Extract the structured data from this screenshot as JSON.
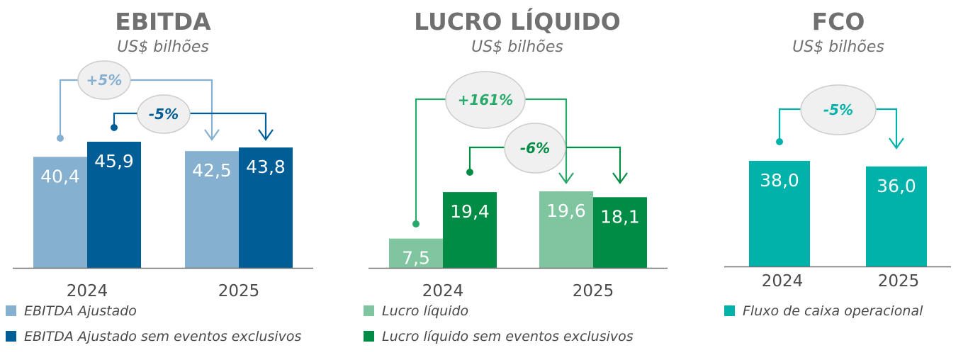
{
  "chart_data": [
    {
      "type": "bar",
      "title": "EBITDA",
      "subtitle": "US$ bilhões",
      "categories": [
        "2024",
        "2025"
      ],
      "series": [
        {
          "name": "EBITDA Ajustado",
          "values": [
            "40,4",
            "42,5"
          ],
          "numeric": [
            40.4,
            42.5
          ],
          "color": "#85b0cf"
        },
        {
          "name": "EBITDA Ajustado sem eventos exclusivos",
          "values": [
            "45,9",
            "43,8"
          ],
          "numeric": [
            45.9,
            43.8
          ],
          "color": "#005d96"
        }
      ],
      "changes": [
        {
          "label": "+5%",
          "series": 0,
          "color": "#85b0cf",
          "text_color": "#85b0cf"
        },
        {
          "label": "-5%",
          "series": 1,
          "color": "#005d96",
          "text_color": "#005d96"
        }
      ],
      "ylim": [
        0,
        50
      ]
    },
    {
      "type": "bar",
      "title": "LUCRO LÍQUIDO",
      "subtitle": "US$ bilhões",
      "categories": [
        "2024",
        "2025"
      ],
      "series": [
        {
          "name": "Lucro líquido",
          "values": [
            "7,5",
            "19,6"
          ],
          "numeric": [
            7.5,
            19.6
          ],
          "color": "#7fc6a0"
        },
        {
          "name": "Lucro líquido sem eventos exclusivos",
          "values": [
            "19,4",
            "18,1"
          ],
          "numeric": [
            19.4,
            18.1
          ],
          "color": "#008c45"
        }
      ],
      "changes": [
        {
          "label": "+161%",
          "series": 0,
          "color": "#27a96a",
          "text_color": "#27a96a"
        },
        {
          "label": "-6%",
          "series": 1,
          "color": "#008c45",
          "text_color": "#008c45"
        }
      ],
      "ylim": [
        0,
        30
      ]
    },
    {
      "type": "bar",
      "title": "FCO",
      "subtitle": "US$ bilhões",
      "categories": [
        "2024",
        "2025"
      ],
      "series": [
        {
          "name": "Fluxo de caixa operacional",
          "values": [
            "38,0",
            "36,0"
          ],
          "numeric": [
            38.0,
            36.0
          ],
          "color": "#00b2a9"
        }
      ],
      "changes": [
        {
          "label": "-5%",
          "series": 0,
          "color": "#00b2a9",
          "text_color": "#00b2a9"
        }
      ],
      "ylim": [
        0,
        60
      ]
    }
  ],
  "colors": {
    "title": "#707070",
    "axis": "#707070",
    "bubble_fill": "#f0f0f0",
    "bubble_stroke": "#cccccc"
  }
}
